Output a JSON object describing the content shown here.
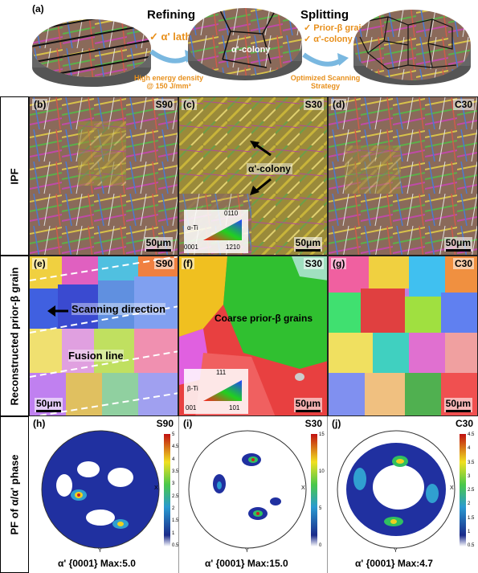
{
  "top": {
    "panel_label": "(a)",
    "refining_title": "Refining",
    "refining_item": "α' lath",
    "energy_text": "High energy density",
    "energy_value": "@ 150 J/mm³",
    "colony_label": "α'-colony",
    "splitting_title": "Splitting",
    "splitting_items": [
      "Prior-β grain",
      "α'-colony"
    ],
    "strategy_text": "Optimized Scanning",
    "strategy_text2": "Strategy",
    "check": "✓"
  },
  "rows": {
    "ipf": "IPF",
    "prior": "Reconstructed prior-β grain",
    "pf": "PF of α/α' phase"
  },
  "ipf_panels": [
    {
      "label": "(b)",
      "name": "S90",
      "scale": "50μm"
    },
    {
      "label": "(c)",
      "name": "S30",
      "scale": "50μm",
      "annotation": "α'-colony"
    },
    {
      "label": "(d)",
      "name": "C30",
      "scale": "50μm"
    }
  ],
  "ipf_key": {
    "top": "0110",
    "left": "0001",
    "right": "1210",
    "phase": "α-Ti"
  },
  "prior_panels": [
    {
      "label": "(e)",
      "name": "S90",
      "scale": "50μm",
      "scan_text": "Scanning direction",
      "fusion_text": "Fusion line"
    },
    {
      "label": "(f)",
      "name": "S30",
      "scale": "50μm",
      "coarse_text": "Coarse prior-β grains"
    },
    {
      "label": "(g)",
      "name": "C30",
      "scale": "50μm"
    }
  ],
  "beta_key": {
    "top": "111",
    "left": "001",
    "right": "101",
    "phase": "β-Ti"
  },
  "pf_panels": [
    {
      "label": "(h)",
      "name": "S90",
      "footer": "α' {0001} Max:5.0",
      "ticks": [
        "5",
        "4.5",
        "4",
        "3.5",
        "3",
        "2.5",
        "2",
        "1.5",
        "1",
        "0.5"
      ],
      "axis_x": "X",
      "axis_y": "Y"
    },
    {
      "label": "(i)",
      "name": "S30",
      "footer": "α' {0001} Max:15.0",
      "ticks": [
        "15",
        "10",
        "5",
        "0"
      ],
      "axis_x": "X",
      "axis_y": "Y"
    },
    {
      "label": "(j)",
      "name": "C30",
      "footer": "α' {0001} Max:4.7",
      "ticks": [
        "4.5",
        "4",
        "3.5",
        "3",
        "2.5",
        "2",
        "1.5",
        "1",
        "0.5"
      ],
      "axis_x": "X",
      "axis_y": "Y"
    }
  ]
}
